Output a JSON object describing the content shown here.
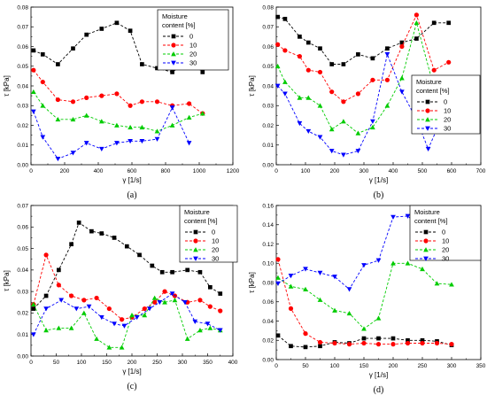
{
  "legend": {
    "title_line1": "Moisture",
    "title_line2": "content [%]"
  },
  "colors": {
    "0": "#000000",
    "10": "#ff0000",
    "20": "#00cc00",
    "30": "#0000ff"
  },
  "chart_data": [
    {
      "type": "line",
      "panel_label": "(a)",
      "xlabel": "γ [1/s]",
      "ylabel": "τ [kPa]",
      "xlim": [
        0,
        1200
      ],
      "ylim": [
        0,
        0.08
      ],
      "xticks": [
        0,
        200,
        400,
        600,
        800,
        1000,
        1200
      ],
      "yticks": [
        0.0,
        0.01,
        0.02,
        0.03,
        0.04,
        0.05,
        0.06,
        0.07,
        0.08
      ],
      "ytick_labels": [
        "0.00",
        "0.01",
        "0.02",
        "0.03",
        "0.04",
        "0.05",
        "0.06",
        "0.07",
        "0.08"
      ],
      "legend_position": "top-right",
      "series": [
        {
          "name": "0",
          "marker": "square",
          "x": [
            15,
            70,
            160,
            250,
            330,
            420,
            510,
            590,
            660,
            750,
            840,
            940,
            1020
          ],
          "y": [
            0.058,
            0.056,
            0.051,
            0.059,
            0.066,
            0.069,
            0.072,
            0.068,
            0.051,
            0.049,
            0.047,
            0.053,
            0.047
          ]
        },
        {
          "name": "10",
          "marker": "circle",
          "x": [
            15,
            70,
            160,
            250,
            330,
            420,
            510,
            590,
            660,
            750,
            840,
            940,
            1020
          ],
          "y": [
            0.048,
            0.042,
            0.033,
            0.032,
            0.034,
            0.035,
            0.036,
            0.03,
            0.032,
            0.032,
            0.03,
            0.031,
            0.026
          ]
        },
        {
          "name": "20",
          "marker": "triangle-up",
          "x": [
            15,
            70,
            160,
            250,
            330,
            420,
            510,
            590,
            660,
            750,
            840,
            940,
            1020
          ],
          "y": [
            0.037,
            0.03,
            0.023,
            0.023,
            0.025,
            0.022,
            0.02,
            0.019,
            0.019,
            0.017,
            0.02,
            0.024,
            0.026
          ]
        },
        {
          "name": "30",
          "marker": "triangle-down",
          "x": [
            15,
            70,
            160,
            250,
            330,
            420,
            510,
            590,
            660,
            750,
            840,
            940
          ],
          "y": [
            0.027,
            0.014,
            0.003,
            0.006,
            0.011,
            0.008,
            0.011,
            0.012,
            0.012,
            0.013,
            0.029,
            0.011
          ]
        }
      ]
    },
    {
      "type": "line",
      "panel_label": "(b)",
      "xlabel": "γ [1/s]",
      "ylabel": "τ [kPa]",
      "xlim": [
        0,
        700
      ],
      "ylim": [
        0,
        0.08
      ],
      "xticks": [
        0,
        100,
        200,
        300,
        400,
        500,
        600,
        700
      ],
      "yticks": [
        0.0,
        0.01,
        0.02,
        0.03,
        0.04,
        0.05,
        0.06,
        0.07,
        0.08
      ],
      "ytick_labels": [
        "0.00",
        "0.01",
        "0.02",
        "0.03",
        "0.04",
        "0.05",
        "0.06",
        "0.07",
        "0.08"
      ],
      "legend_position": "right",
      "series": [
        {
          "name": "0",
          "marker": "square",
          "x": [
            5,
            30,
            80,
            110,
            150,
            190,
            230,
            280,
            330,
            380,
            430,
            480,
            540,
            590
          ],
          "y": [
            0.075,
            0.074,
            0.065,
            0.062,
            0.059,
            0.051,
            0.051,
            0.056,
            0.054,
            0.059,
            0.062,
            0.064,
            0.072,
            0.072
          ]
        },
        {
          "name": "10",
          "marker": "circle",
          "x": [
            5,
            30,
            80,
            110,
            150,
            190,
            230,
            280,
            330,
            380,
            430,
            480,
            540,
            590
          ],
          "y": [
            0.061,
            0.058,
            0.055,
            0.048,
            0.047,
            0.037,
            0.032,
            0.036,
            0.043,
            0.043,
            0.06,
            0.076,
            0.048,
            0.052
          ]
        },
        {
          "name": "20",
          "marker": "triangle-up",
          "x": [
            5,
            30,
            80,
            110,
            150,
            190,
            230,
            280,
            330,
            380,
            430,
            480,
            540,
            560
          ],
          "y": [
            0.05,
            0.042,
            0.034,
            0.034,
            0.03,
            0.018,
            0.022,
            0.016,
            0.019,
            0.03,
            0.044,
            0.072,
            0.039,
            0.034
          ]
        },
        {
          "name": "30",
          "marker": "triangle-down",
          "x": [
            5,
            30,
            80,
            110,
            150,
            190,
            230,
            280,
            330,
            380,
            430,
            480,
            520,
            570
          ],
          "y": [
            0.04,
            0.036,
            0.021,
            0.017,
            0.014,
            0.007,
            0.005,
            0.007,
            0.022,
            0.056,
            0.037,
            0.023,
            0.008,
            0.025
          ]
        }
      ]
    },
    {
      "type": "line",
      "panel_label": "(c)",
      "xlabel": "γ [1/s]",
      "ylabel": "τ [kPa]",
      "xlim": [
        0,
        400
      ],
      "ylim": [
        0,
        0.07
      ],
      "xticks": [
        0,
        50,
        100,
        150,
        200,
        250,
        300,
        350,
        400
      ],
      "yticks": [
        0.0,
        0.01,
        0.02,
        0.03,
        0.04,
        0.05,
        0.06,
        0.07
      ],
      "ytick_labels": [
        "0.00",
        "0.01",
        "0.02",
        "0.03",
        "0.04",
        "0.05",
        "0.06",
        "0.07"
      ],
      "legend_position": "top-right",
      "series": [
        {
          "name": "0",
          "marker": "square",
          "x": [
            5,
            30,
            55,
            80,
            95,
            120,
            140,
            165,
            190,
            215,
            240,
            260,
            280,
            310,
            335,
            355,
            375
          ],
          "y": [
            0.022,
            0.028,
            0.04,
            0.052,
            0.062,
            0.058,
            0.057,
            0.055,
            0.051,
            0.047,
            0.042,
            0.039,
            0.039,
            0.04,
            0.039,
            0.032,
            0.029
          ]
        },
        {
          "name": "10",
          "marker": "circle",
          "x": [
            5,
            30,
            55,
            80,
            105,
            130,
            155,
            180,
            200,
            225,
            245,
            265,
            285,
            310,
            335,
            355,
            375
          ],
          "y": [
            0.024,
            0.047,
            0.033,
            0.028,
            0.026,
            0.027,
            0.022,
            0.017,
            0.018,
            0.022,
            0.025,
            0.03,
            0.028,
            0.025,
            0.026,
            0.023,
            0.021
          ]
        },
        {
          "name": "20",
          "marker": "triangle-up",
          "x": [
            5,
            30,
            55,
            80,
            105,
            130,
            155,
            180,
            200,
            225,
            245,
            265,
            285,
            310,
            335,
            355,
            375
          ],
          "y": [
            0.024,
            0.012,
            0.013,
            0.013,
            0.02,
            0.008,
            0.004,
            0.004,
            0.019,
            0.019,
            0.027,
            0.025,
            0.026,
            0.008,
            0.012,
            0.013,
            0.012
          ]
        },
        {
          "name": "30",
          "marker": "triangle-down",
          "x": [
            5,
            30,
            60,
            90,
            115,
            140,
            165,
            185,
            210,
            235,
            255,
            280,
            305,
            325,
            350,
            375
          ],
          "y": [
            0.01,
            0.022,
            0.026,
            0.022,
            0.023,
            0.018,
            0.015,
            0.014,
            0.018,
            0.022,
            0.025,
            0.029,
            0.025,
            0.016,
            0.015,
            0.012
          ]
        }
      ]
    },
    {
      "type": "line",
      "panel_label": "(d)",
      "xlabel": "γ [1/s]",
      "ylabel": "τ [kPa]",
      "xlim": [
        0,
        350
      ],
      "ylim": [
        0,
        0.16
      ],
      "xticks": [
        0,
        50,
        100,
        150,
        200,
        250,
        300,
        350
      ],
      "yticks": [
        0.0,
        0.02,
        0.04,
        0.06,
        0.08,
        0.1,
        0.12,
        0.14,
        0.16
      ],
      "ytick_labels": [
        "0.00",
        "0.02",
        "0.04",
        "0.06",
        "0.08",
        "0.10",
        "0.12",
        "0.14",
        "0.16"
      ],
      "legend_position": "top-right",
      "series": [
        {
          "name": "0",
          "marker": "square",
          "x": [
            3,
            25,
            50,
            75,
            100,
            125,
            150,
            175,
            200,
            225,
            250,
            275,
            300
          ],
          "y": [
            0.025,
            0.014,
            0.013,
            0.014,
            0.018,
            0.017,
            0.022,
            0.022,
            0.022,
            0.02,
            0.02,
            0.019,
            0.015
          ]
        },
        {
          "name": "10",
          "marker": "circle",
          "x": [
            3,
            25,
            50,
            75,
            100,
            125,
            150,
            175,
            200,
            225,
            250,
            275,
            300
          ],
          "y": [
            0.104,
            0.053,
            0.027,
            0.018,
            0.017,
            0.016,
            0.017,
            0.016,
            0.016,
            0.017,
            0.017,
            0.017,
            0.016
          ]
        },
        {
          "name": "20",
          "marker": "triangle-up",
          "x": [
            3,
            25,
            50,
            75,
            100,
            125,
            150,
            175,
            200,
            225,
            250,
            275,
            300
          ],
          "y": [
            0.085,
            0.076,
            0.073,
            0.062,
            0.051,
            0.048,
            0.032,
            0.043,
            0.1,
            0.1,
            0.094,
            0.079,
            0.078
          ]
        },
        {
          "name": "30",
          "marker": "triangle-down",
          "x": [
            3,
            25,
            50,
            75,
            100,
            125,
            150,
            175,
            200,
            225,
            250,
            275,
            300
          ],
          "y": [
            0.079,
            0.087,
            0.094,
            0.09,
            0.086,
            0.073,
            0.098,
            0.103,
            0.148,
            0.149,
            0.136,
            0.12,
            0.111
          ]
        }
      ]
    }
  ]
}
